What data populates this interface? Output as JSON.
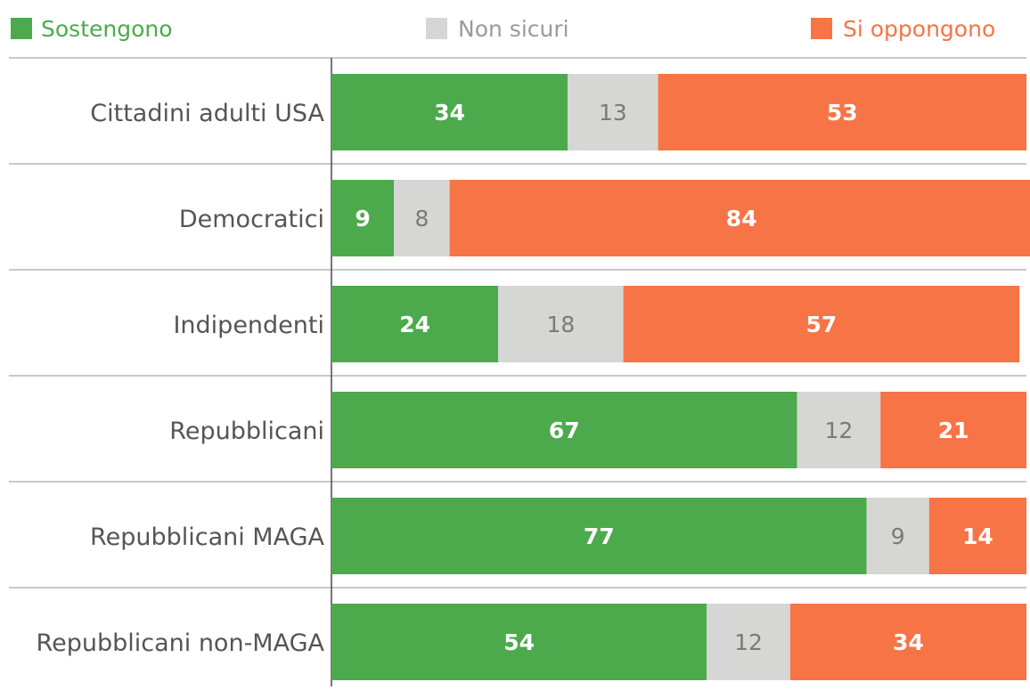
{
  "chart_data": {
    "type": "bar",
    "orientation": "horizontal",
    "stacked": true,
    "normalized_to": 100,
    "categories": [
      "Cittadini adulti USA",
      "Democratici",
      "Indipendenti",
      "Repubblicani",
      "Repubblicani MAGA",
      "Repubblicani non-MAGA"
    ],
    "series": [
      {
        "name": "Sostengono",
        "color": "#4caa4c",
        "label_color": "#ffffff",
        "values": [
          34,
          9,
          24,
          67,
          77,
          54
        ]
      },
      {
        "name": "Non sicuri",
        "color": "#d6d6d4",
        "label_color": "#7a7a7a",
        "values": [
          13,
          8,
          18,
          12,
          9,
          12
        ]
      },
      {
        "name": "Si oppongono",
        "color": "#f77446",
        "label_color": "#ffffff",
        "values": [
          53,
          84,
          57,
          21,
          14,
          34
        ]
      }
    ],
    "legend_position": "top",
    "grid": false,
    "data_labels": true
  }
}
